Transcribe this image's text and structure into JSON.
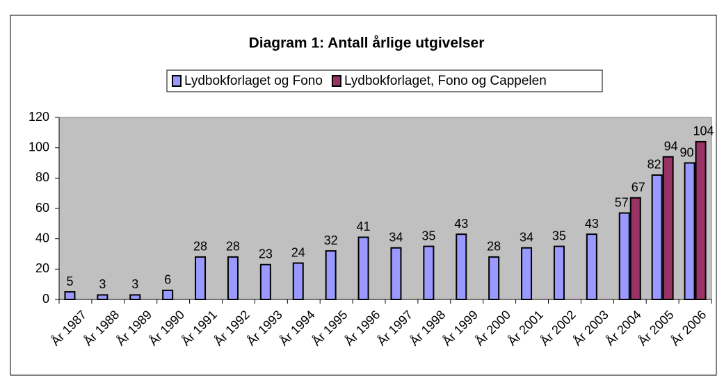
{
  "chart_data": {
    "type": "bar",
    "title": "Diagram 1: Antall årlige utgivelser",
    "categories": [
      "År 1987",
      "År 1988",
      "År 1989",
      "År 1990",
      "År 1991",
      "År 1992",
      "År 1993",
      "År 1994",
      "År 1995",
      "År 1996",
      "År 1997",
      "År 1998",
      "År 1999",
      "År 2000",
      "År 2001",
      "År 2002",
      "År 2003",
      "År 2004",
      "År 2005",
      "År 2006"
    ],
    "series": [
      {
        "name": "Lydbokforlaget og Fono",
        "color": "#9999ff",
        "values": [
          5,
          3,
          3,
          6,
          28,
          28,
          23,
          24,
          32,
          41,
          34,
          35,
          43,
          28,
          34,
          35,
          43,
          57,
          82,
          90
        ]
      },
      {
        "name": "Lydbokforlaget, Fono og Cappelen",
        "color": "#993366",
        "values": [
          null,
          null,
          null,
          null,
          null,
          null,
          null,
          null,
          null,
          null,
          null,
          null,
          null,
          null,
          null,
          null,
          null,
          67,
          94,
          104
        ]
      }
    ],
    "ylim": [
      0,
      120
    ],
    "yticks": [
      0,
      20,
      40,
      60,
      80,
      100,
      120
    ],
    "grid": false,
    "plot_background": "#c0c0c0"
  }
}
